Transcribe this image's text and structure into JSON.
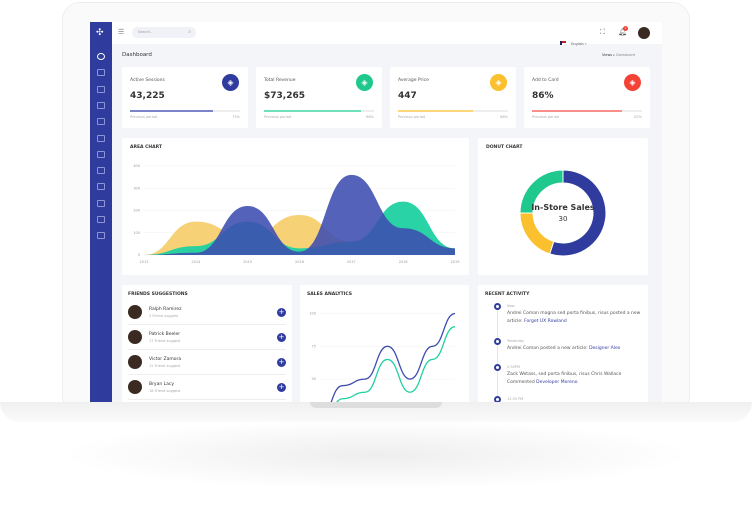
{
  "colors": {
    "primary": "#2f3c9e",
    "green": "#1fd1a0",
    "yellow": "#fbc02d",
    "red": "#f44336"
  },
  "topbar": {
    "search_placeholder": "Search..",
    "language": "English",
    "notifications": "1"
  },
  "page": {
    "title": "Dashboard",
    "breadcrumb": [
      "Views",
      "Dashboard"
    ]
  },
  "stats": [
    {
      "label": "Active Sessions",
      "value": "43,225",
      "sub": "Previous period",
      "pct": "75%",
      "fill": 75,
      "color": "#7b83c9",
      "icon_color": "#2f3c9e",
      "icon": "cube-icon"
    },
    {
      "label": "Total Revenue",
      "value": "$73,265",
      "sub": "Previous period",
      "pct": "88%",
      "fill": 88,
      "color": "#6ee0bc",
      "icon_color": "#1fc98e",
      "icon": "briefcase-icon"
    },
    {
      "label": "Average Price",
      "value": "447",
      "sub": "Previous period",
      "pct": "68%",
      "fill": 68,
      "color": "#fdd77a",
      "icon_color": "#fbc02d",
      "icon": "tag-icon"
    },
    {
      "label": "Add to Card",
      "value": "86%",
      "sub": "Previous period",
      "pct": "82%",
      "fill": 82,
      "color": "#f7908a",
      "icon_color": "#f44336",
      "icon": "layers-icon"
    }
  ],
  "area_title": "AREA CHART",
  "donut_title": "DONUT CHART",
  "friends_title": "FRIENDS SUGGESTIONS",
  "sales_title": "SALES ANALYTICS",
  "activity_title": "RECENT ACTIVITY",
  "chart_data": [
    {
      "type": "area",
      "title": "AREA CHART",
      "categories": [
        "2013",
        "2014",
        "2015",
        "2016",
        "2017",
        "2018",
        "2019"
      ],
      "ylim": [
        0,
        400
      ],
      "yticks": [
        "0",
        "100",
        "200",
        "300",
        "400"
      ],
      "series": [
        {
          "color": "#f7cf6e",
          "values": [
            0,
            150,
            80,
            180,
            60,
            40,
            30
          ]
        },
        {
          "color": "#1fd1a0",
          "values": [
            0,
            40,
            150,
            30,
            60,
            240,
            30
          ]
        },
        {
          "color": "#3d4cb0",
          "values": [
            0,
            10,
            220,
            15,
            360,
            120,
            30
          ]
        }
      ]
    },
    {
      "type": "pie",
      "title": "DONUT CHART",
      "center_label": "In-Store Sales",
      "center_value": "30",
      "slices": [
        {
          "value": 55,
          "color": "#2f3c9e"
        },
        {
          "value": 20,
          "color": "#fbc02d"
        },
        {
          "value": 25,
          "color": "#1fc98e"
        }
      ]
    },
    {
      "type": "line",
      "title": "SALES ANALYTICS",
      "ylim": [
        15,
        105
      ],
      "yticks": [
        "25",
        "50",
        "75",
        "100"
      ],
      "series": [
        {
          "color": "#3d4cb0",
          "values": [
            20,
            45,
            50,
            75,
            50,
            75,
            100
          ]
        },
        {
          "color": "#1fd1a0",
          "values": [
            10,
            35,
            40,
            65,
            40,
            65,
            90
          ]
        }
      ]
    }
  ],
  "friends": [
    {
      "name": "Ralph Ramirez",
      "sub": "3 Friend suggest"
    },
    {
      "name": "Patrick Beeler",
      "sub": "17 Friend suggest"
    },
    {
      "name": "Victor Zamora",
      "sub": "12 Friend suggest"
    },
    {
      "name": "Bryan Lacy",
      "sub": "18 Friend suggest"
    }
  ],
  "activity": [
    {
      "time": "Now",
      "text": "Andrei Coman magna sed porta finibus, risus posted a new article:",
      "link": "Forget UX Rowland"
    },
    {
      "time": "Yesterday",
      "text": "Andrei Coman posted a new article:",
      "link": "Designer Alex"
    },
    {
      "time": "2:30PM",
      "text": "Zack Wetass, sed porta finibus, risus Chris Wallace Commented",
      "link": "Developer Moreno"
    },
    {
      "time": "12:30 PM",
      "text": "",
      "link": ""
    }
  ]
}
